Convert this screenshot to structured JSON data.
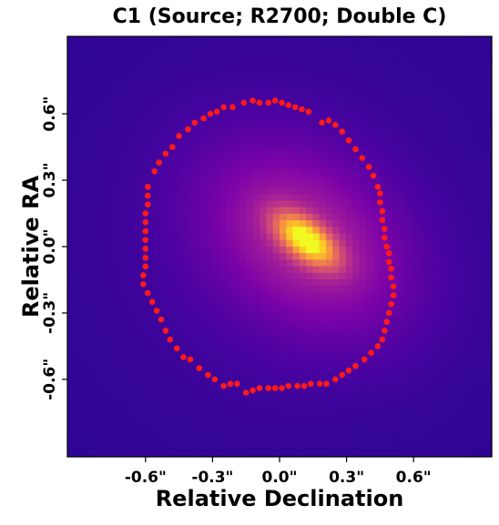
{
  "chart_data": {
    "type": "heatmap",
    "title": "C1 (Source; R2700; Double C)",
    "xlabel": "Relative Declination",
    "ylabel": "Relative RA",
    "xlim": [
      -0.95,
      0.95
    ],
    "ylim": [
      -0.95,
      0.95
    ],
    "x_ticks": [
      -0.6,
      -0.3,
      0.0,
      0.3,
      0.6
    ],
    "x_tick_labels": [
      "-0.6\"",
      "-0.3\"",
      "0.0\"",
      "0.3\"",
      "0.6\""
    ],
    "y_ticks": [
      0.6,
      0.3,
      0.0,
      -0.3,
      -0.6
    ],
    "y_tick_labels": [
      "0.6\"",
      "0.3\"",
      "0.0\"",
      "-0.3\"",
      "-0.6\""
    ],
    "grid": false,
    "colormap": "plasma",
    "colors": {
      "background": "#1c0a9c",
      "peak": "#f8e52a",
      "marker": "#ff1a1a"
    },
    "source": {
      "peak_x": 0.12,
      "peak_y": 0.03,
      "major_axis_angle_deg": -38,
      "core_sigma_major": 0.11,
      "core_sigma_minor": 0.055,
      "halo_sigma_major": 0.34,
      "halo_sigma_minor": 0.24,
      "halo_amplitude": 0.5
    },
    "ring_points": [
      [
        -0.02,
        0.66
      ],
      [
        0.01,
        0.65
      ],
      [
        0.04,
        0.64
      ],
      [
        0.07,
        0.63
      ],
      [
        0.1,
        0.62
      ],
      [
        0.13,
        0.61
      ],
      [
        0.19,
        0.56
      ],
      [
        0.22,
        0.57
      ],
      [
        0.25,
        0.55
      ],
      [
        0.28,
        0.52
      ],
      [
        0.31,
        0.48
      ],
      [
        0.34,
        0.44
      ],
      [
        0.37,
        0.4
      ],
      [
        0.4,
        0.36
      ],
      [
        0.42,
        0.32
      ],
      [
        0.44,
        0.27
      ],
      [
        0.45,
        0.24
      ],
      [
        0.45,
        0.2
      ],
      [
        0.46,
        0.16
      ],
      [
        0.46,
        0.12
      ],
      [
        0.47,
        0.08
      ],
      [
        0.47,
        0.04
      ],
      [
        0.48,
        0.0
      ],
      [
        0.49,
        -0.03
      ],
      [
        0.49,
        -0.07
      ],
      [
        0.5,
        -0.1
      ],
      [
        0.5,
        -0.14
      ],
      [
        0.51,
        -0.18
      ],
      [
        0.51,
        -0.22
      ],
      [
        0.5,
        -0.26
      ],
      [
        0.49,
        -0.3
      ],
      [
        0.48,
        -0.34
      ],
      [
        0.47,
        -0.38
      ],
      [
        0.46,
        -0.42
      ],
      [
        0.44,
        -0.45
      ],
      [
        0.41,
        -0.48
      ],
      [
        0.38,
        -0.51
      ],
      [
        0.34,
        -0.54
      ],
      [
        0.31,
        -0.56
      ],
      [
        0.28,
        -0.58
      ],
      [
        0.25,
        -0.6
      ],
      [
        0.21,
        -0.62
      ],
      [
        0.18,
        -0.62
      ],
      [
        0.14,
        -0.62
      ],
      [
        0.11,
        -0.63
      ],
      [
        0.08,
        -0.63
      ],
      [
        0.04,
        -0.63
      ],
      [
        0.01,
        -0.64
      ],
      [
        -0.02,
        -0.64
      ],
      [
        -0.05,
        -0.64
      ],
      [
        -0.09,
        -0.64
      ],
      [
        -0.12,
        -0.65
      ],
      [
        -0.15,
        -0.66
      ],
      [
        -0.19,
        -0.62
      ],
      [
        -0.22,
        -0.62
      ],
      [
        -0.25,
        -0.63
      ],
      [
        -0.29,
        -0.6
      ],
      [
        -0.32,
        -0.58
      ],
      [
        -0.36,
        -0.55
      ],
      [
        -0.4,
        -0.51
      ],
      [
        -0.43,
        -0.5
      ],
      [
        -0.46,
        -0.46
      ],
      [
        -0.49,
        -0.42
      ],
      [
        -0.51,
        -0.38
      ],
      [
        -0.53,
        -0.33
      ],
      [
        -0.55,
        -0.29
      ],
      [
        -0.57,
        -0.25
      ],
      [
        -0.59,
        -0.21
      ],
      [
        -0.61,
        -0.17
      ],
      [
        -0.61,
        -0.13
      ],
      [
        -0.6,
        -0.09
      ],
      [
        -0.6,
        -0.05
      ],
      [
        -0.6,
        -0.01
      ],
      [
        -0.6,
        0.03
      ],
      [
        -0.6,
        0.07
      ],
      [
        -0.6,
        0.11
      ],
      [
        -0.6,
        0.15
      ],
      [
        -0.59,
        0.19
      ],
      [
        -0.59,
        0.23
      ],
      [
        -0.59,
        0.27
      ],
      [
        -0.56,
        0.34
      ],
      [
        -0.54,
        0.38
      ],
      [
        -0.51,
        0.42
      ],
      [
        -0.48,
        0.45
      ],
      [
        -0.45,
        0.5
      ],
      [
        -0.41,
        0.53
      ],
      [
        -0.38,
        0.56
      ],
      [
        -0.34,
        0.58
      ],
      [
        -0.31,
        0.6
      ],
      [
        -0.28,
        0.61
      ],
      [
        -0.25,
        0.63
      ],
      [
        -0.21,
        0.63
      ],
      [
        -0.16,
        0.65
      ],
      [
        -0.12,
        0.66
      ],
      [
        -0.09,
        0.65
      ],
      [
        -0.05,
        0.65
      ]
    ]
  }
}
